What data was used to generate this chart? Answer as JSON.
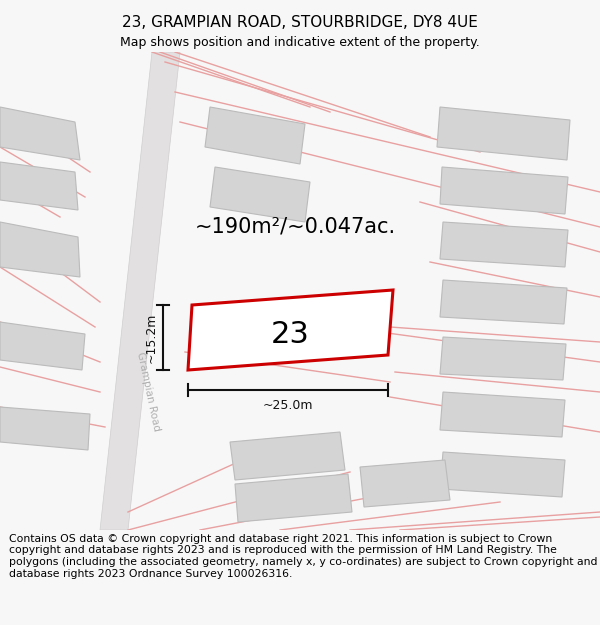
{
  "title": "23, GRAMPIAN ROAD, STOURBRIDGE, DY8 4UE",
  "subtitle": "Map shows position and indicative extent of the property.",
  "area_label": "~190m²/~0.047ac.",
  "number_label": "23",
  "width_label": "~25.0m",
  "height_label": "~15.2m",
  "road_label": "Grampian Road",
  "footer_text": "Contains OS data © Crown copyright and database right 2021. This information is subject to Crown copyright and database rights 2023 and is reproduced with the permission of HM Land Registry. The polygons (including the associated geometry, namely x, y co-ordinates) are subject to Crown copyright and database rights 2023 Ordnance Survey 100026316.",
  "bg_color": "#f7f7f7",
  "map_bg": "#eeecec",
  "building_fill": "#d4d4d4",
  "building_edge": "#bbbbbb",
  "plot_fill": "#ffffff",
  "plot_edge": "#cc0000",
  "pink_line_color": "#e8a0a0",
  "road_fill": "#e2e0e0",
  "title_fontsize": 11,
  "subtitle_fontsize": 9,
  "area_fontsize": 15,
  "number_fontsize": 22,
  "footer_fontsize": 7.8,
  "road_label_color": "#b0b0b0",
  "dim_color": "#111111"
}
